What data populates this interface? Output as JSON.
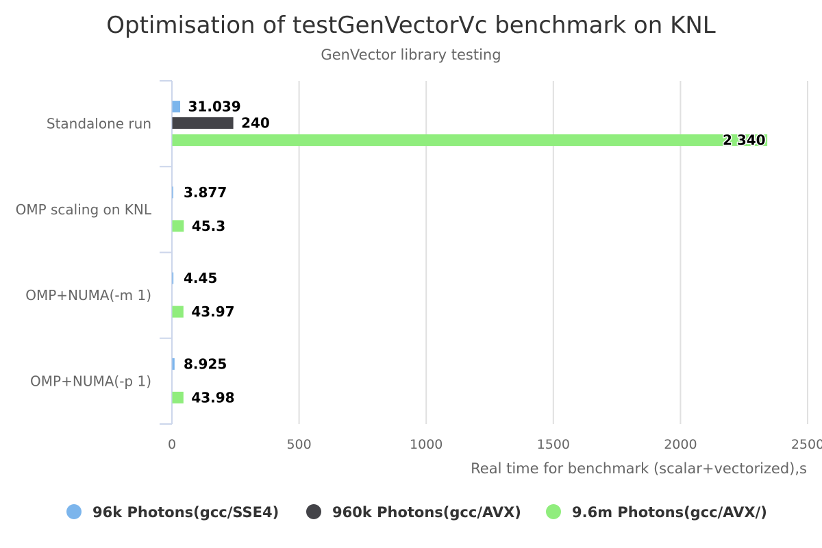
{
  "chart_data": {
    "type": "bar",
    "orientation": "horizontal",
    "title": "Optimisation of testGenVectorVc benchmark on KNL",
    "subtitle": "GenVector library testing",
    "xlabel": "Real time for benchmark (scalar+vectorized),s",
    "ylabel": "",
    "xlim": [
      0,
      2500
    ],
    "ticks": [
      0,
      500,
      1000,
      1500,
      2000,
      2500
    ],
    "tick_labels": [
      "0",
      "500",
      "1000",
      "1500",
      "2000",
      "2500"
    ],
    "grid": true,
    "legend_position": "bottom",
    "categories": [
      "Standalone run",
      "OMP scaling on KNL",
      "OMP+NUMA(-m 1)",
      "OMP+NUMA(-p 1)"
    ],
    "series": [
      {
        "name": "96k Photons(gcc/SSE4)",
        "color": "#7cb5ec",
        "values": [
          31.039,
          3.877,
          4.45,
          8.925
        ],
        "labels": [
          "31.039",
          "3.877",
          "4.45",
          "8.925"
        ]
      },
      {
        "name": "960k Photons(gcc/AVX)",
        "color": "#434348",
        "values": [
          240,
          null,
          null,
          null
        ],
        "labels": [
          "240",
          null,
          null,
          null
        ]
      },
      {
        "name": "9.6m Photons(gcc/AVX/)",
        "color": "#90ed7d",
        "values": [
          2340,
          45.3,
          43.97,
          43.98
        ],
        "labels": [
          "2 340",
          "45.3",
          "43.97",
          "43.98"
        ]
      }
    ]
  }
}
